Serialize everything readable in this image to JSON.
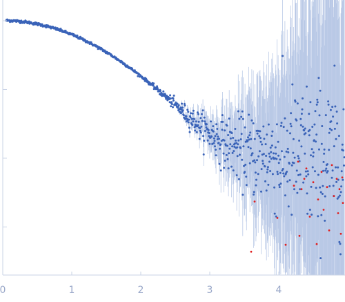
{
  "chart_data": {
    "type": "scatter",
    "title": "",
    "xlabel": "",
    "ylabel": "",
    "xlim": [
      0,
      4.95
    ],
    "y_scale": "log",
    "ylim_log10": [
      -0.7,
      3.0
    ],
    "y_ticks_log10": [
      0,
      1,
      2,
      3
    ],
    "x_ticks": [
      0,
      1,
      2,
      3,
      4
    ],
    "x_tick_labels": [
      "0",
      "1",
      "2",
      "3",
      "4"
    ],
    "grid": false,
    "legend": "none",
    "colors": {
      "points": "#3a63b8",
      "error_bars": "#b9c9e6",
      "outliers": "#e02020",
      "axis": "#c9d3e6",
      "tick_labels": "#9aa8c9"
    },
    "series": [
      {
        "role": "measured intensity with error bars",
        "model": "guinier_decay_to_background",
        "params": {
          "I0_log10": 3.0,
          "Rg": 1.2,
          "background_log10": 1.0
        },
        "x_start": 0.05,
        "x_end": 4.95,
        "n_points": 900
      },
      {
        "role": "excluded / outlier points",
        "x": [
          3.6,
          3.65,
          3.98,
          4.1,
          4.22,
          4.28,
          4.3,
          4.33,
          4.37,
          4.4,
          4.45,
          4.5,
          4.55,
          4.57,
          4.62,
          4.65,
          4.7,
          4.73,
          4.77,
          4.8,
          4.84,
          4.86,
          4.88,
          4.9,
          4.92,
          4.93
        ],
        "y_log10": [
          -0.36,
          0.37,
          0.13,
          -0.26,
          0.6,
          0.95,
          -0.13,
          0.55,
          0.7,
          0.85,
          0.15,
          0.65,
          -0.25,
          0.4,
          0.8,
          0.25,
          0.58,
          -0.05,
          0.9,
          0.45,
          0.7,
          0.2,
          0.55,
          -0.1,
          0.72,
          0.35
        ]
      }
    ]
  }
}
